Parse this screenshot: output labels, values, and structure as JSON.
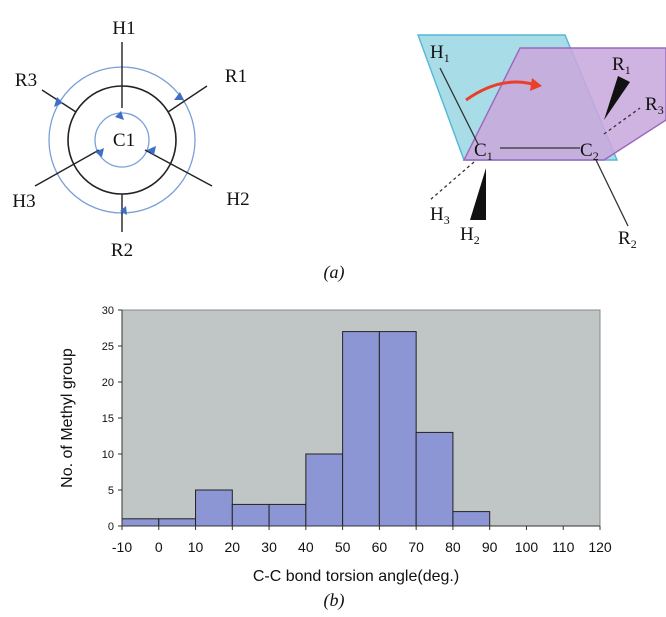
{
  "panel_a": {
    "label": "(a)",
    "newman": {
      "center": "C1",
      "front": [
        "H1",
        "H2",
        "H3"
      ],
      "back": [
        "R1",
        "R2",
        "R3"
      ]
    },
    "sawhorse": {
      "carbon1": "C",
      "carbon1_sub": "1",
      "carbon2": "C",
      "carbon2_sub": "2",
      "h1": "H",
      "h1_sub": "1",
      "h2": "H",
      "h2_sub": "2",
      "h3": "H",
      "h3_sub": "3",
      "r1": "R",
      "r1_sub": "1",
      "r2": "R",
      "r2_sub": "2",
      "r3": "R",
      "r3_sub": "3",
      "plane1_color": "#9fd8e4",
      "plane2_color": "#c8a8dc",
      "arrow_color": "#e8402a"
    }
  },
  "panel_b": {
    "label": "(b)",
    "plot_bg": "#c0c6c6",
    "bar_color": "#8c96d4"
  },
  "chart_data": {
    "type": "bar",
    "xlabel": "C-C bond torsion angle(deg.)",
    "ylabel": "No. of Methyl group",
    "x_ticks": [
      "-10",
      "0",
      "10",
      "20",
      "30",
      "40",
      "50",
      "60",
      "70",
      "80",
      "90",
      "100",
      "110",
      "120"
    ],
    "bins": [
      {
        "from": -10,
        "to": 0,
        "count": 1
      },
      {
        "from": 0,
        "to": 10,
        "count": 1
      },
      {
        "from": 10,
        "to": 20,
        "count": 5
      },
      {
        "from": 20,
        "to": 30,
        "count": 3
      },
      {
        "from": 30,
        "to": 40,
        "count": 3
      },
      {
        "from": 40,
        "to": 50,
        "count": 10
      },
      {
        "from": 50,
        "to": 60,
        "count": 27
      },
      {
        "from": 60,
        "to": 70,
        "count": 27
      },
      {
        "from": 70,
        "to": 80,
        "count": 13
      },
      {
        "from": 80,
        "to": 90,
        "count": 2
      }
    ],
    "xlim": [
      -10,
      120
    ],
    "ylim": [
      0,
      30
    ],
    "y_ticks": [
      0,
      5,
      10,
      15,
      20,
      25,
      30
    ],
    "grid": false,
    "legend": "none"
  }
}
